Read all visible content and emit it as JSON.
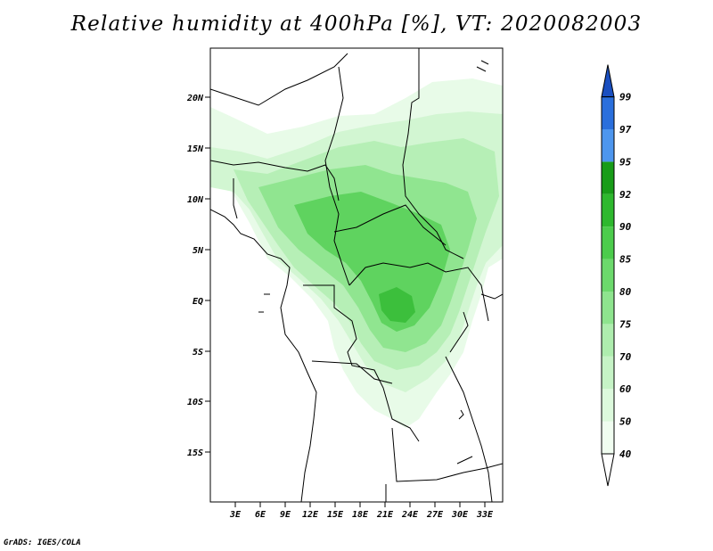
{
  "title": "Relative humidity at 400hPa [%], VT: 2020082003",
  "credit": "GrADS: IGES/COLA",
  "map": {
    "lat_ticks": [
      "20N",
      "15N",
      "10N",
      "5N",
      "EQ",
      "5S",
      "10S",
      "15S"
    ],
    "lon_ticks": [
      "3E",
      "6E",
      "9E",
      "12E",
      "15E",
      "18E",
      "21E",
      "24E",
      "27E",
      "30E",
      "33E"
    ]
  },
  "colorbar": {
    "levels": [
      "40",
      "50",
      "60",
      "70",
      "75",
      "80",
      "85",
      "90",
      "92",
      "95",
      "97",
      "99"
    ],
    "colors": [
      "#f0fdf0",
      "#dcf9dc",
      "#c6f3c6",
      "#aeedae",
      "#8ee48e",
      "#6cd96c",
      "#4ccc4c",
      "#2eb82e",
      "#189c18",
      "#4d96ee",
      "#2a6fdc",
      "#1a4fc0"
    ],
    "overflow_color": "#1a4fc0",
    "underflow_color": "#ffffff"
  }
}
